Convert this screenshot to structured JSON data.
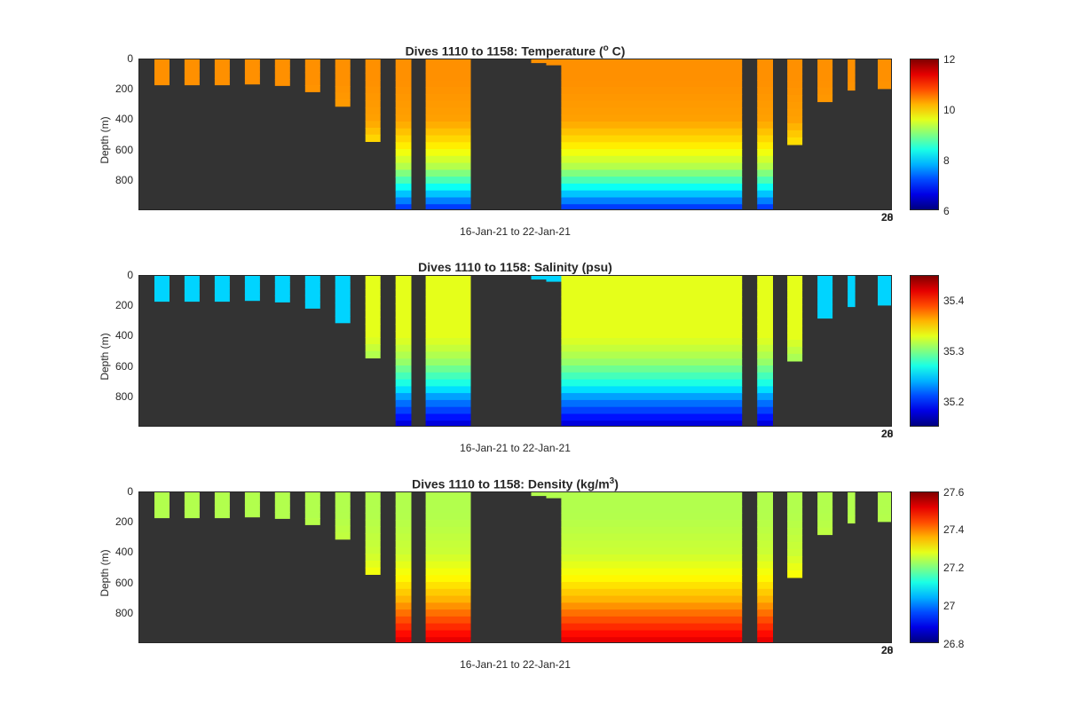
{
  "panels": [
    {
      "title_main": "Dives 1110 to 1158: Temperature (",
      "title_sup": "o",
      "title_end": " C)",
      "ylabel": "Depth (m)",
      "yticks": [
        "0",
        "200",
        "400",
        "600",
        "800"
      ],
      "xlabel": "16-Jan-21 to 22-Jan-21",
      "xtick_overlap": [
        "28",
        "20"
      ],
      "colorbar": {
        "min": 6,
        "max": 12,
        "ticks": [
          "12",
          "10",
          "8",
          "6"
        ]
      }
    },
    {
      "title_main": "Dives 1110 to 1158: Salinity (psu)",
      "title_sup": "",
      "title_end": "",
      "ylabel": "Depth (m)",
      "yticks": [
        "0",
        "200",
        "400",
        "600",
        "800"
      ],
      "xlabel": "16-Jan-21 to 22-Jan-21",
      "xtick_overlap": [
        "28",
        "20"
      ],
      "colorbar": {
        "min": 35.15,
        "max": 35.45,
        "ticks": [
          "35.4",
          "35.3",
          "35.2"
        ]
      }
    },
    {
      "title_main": "Dives 1110 to 1158: Density (kg/m",
      "title_sup": "3",
      "title_end": ")",
      "ylabel": "Depth (m)",
      "yticks": [
        "0",
        "200",
        "400",
        "600",
        "800"
      ],
      "xlabel": "16-Jan-21 to 22-Jan-21",
      "xtick_overlap": [
        "28",
        "20"
      ],
      "colorbar": {
        "min": 26.8,
        "max": 27.6,
        "ticks": [
          "27.6",
          "27.4",
          "27.2",
          "27",
          "26.8"
        ]
      }
    }
  ],
  "chart_data": {
    "type": "heatmap",
    "colormap": "jet",
    "background_color": "#333333",
    "ylim": [
      0,
      990
    ],
    "y_reversed": true,
    "profile_columns": [
      {
        "x0": 0.02,
        "x1": 0.04,
        "depth": 165
      },
      {
        "x0": 0.06,
        "x1": 0.08,
        "depth": 165
      },
      {
        "x0": 0.1,
        "x1": 0.12,
        "depth": 165
      },
      {
        "x0": 0.14,
        "x1": 0.16,
        "depth": 160
      },
      {
        "x0": 0.18,
        "x1": 0.2,
        "depth": 170
      },
      {
        "x0": 0.22,
        "x1": 0.24,
        "depth": 210
      },
      {
        "x0": 0.26,
        "x1": 0.28,
        "depth": 305
      },
      {
        "x0": 0.3,
        "x1": 0.32,
        "depth": 535
      },
      {
        "x0": 0.34,
        "x1": 0.361,
        "depth": 990
      },
      {
        "x0": 0.38,
        "x1": 0.44,
        "depth": 990
      },
      {
        "x0": 0.52,
        "x1": 0.56,
        "depth": 20
      },
      {
        "x0": 0.54,
        "x1": 0.56,
        "depth": 35
      },
      {
        "x0": 0.56,
        "x1": 0.8,
        "depth": 990
      },
      {
        "x0": 0.82,
        "x1": 0.841,
        "depth": 990
      },
      {
        "x0": 0.86,
        "x1": 0.88,
        "depth": 555
      },
      {
        "x0": 0.9,
        "x1": 0.92,
        "depth": 275
      },
      {
        "x0": 0.94,
        "x1": 0.95,
        "depth": 200
      },
      {
        "x0": 0.98,
        "x1": 1.0,
        "depth": 190
      }
    ],
    "series": [
      {
        "name": "Temperature",
        "profile_depths": [
          0,
          150,
          400,
          550,
          700,
          800,
          900,
          990
        ],
        "profile_values": [
          10.4,
          10.4,
          10.3,
          9.9,
          9.3,
          8.6,
          7.7,
          6.9
        ]
      },
      {
        "name": "Salinity",
        "profile_depths": [
          0,
          150,
          400,
          550,
          700,
          800,
          900,
          990
        ],
        "profile_values": [
          35.33,
          35.33,
          35.33,
          35.31,
          35.27,
          35.23,
          35.2,
          35.17
        ],
        "shallow_surface_value": 35.25
      },
      {
        "name": "Density",
        "profile_depths": [
          0,
          150,
          400,
          550,
          700,
          800,
          900,
          990
        ],
        "profile_values": [
          27.24,
          27.24,
          27.26,
          27.3,
          27.36,
          27.42,
          27.48,
          27.53
        ]
      }
    ]
  }
}
